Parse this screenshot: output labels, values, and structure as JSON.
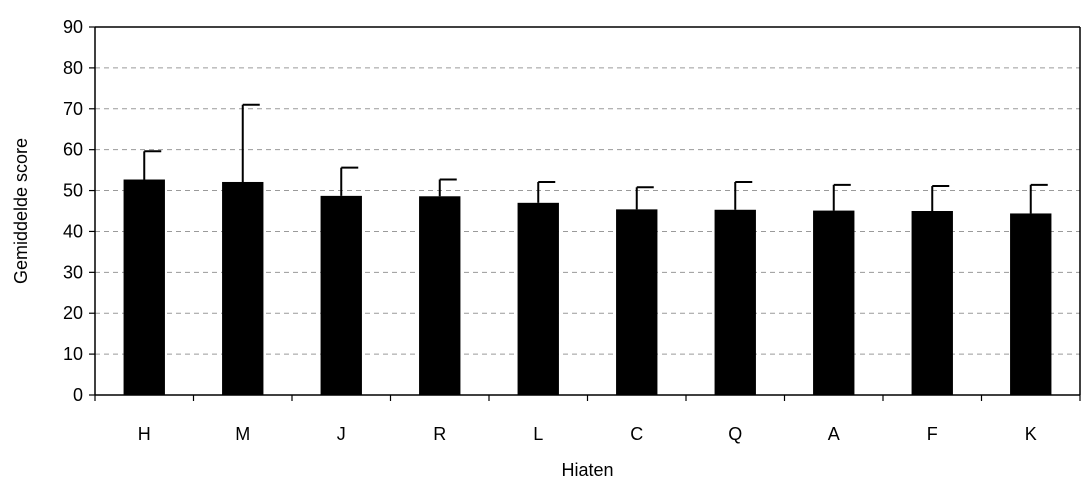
{
  "chart_data": {
    "type": "bar",
    "title": "",
    "xlabel": "Hiaten",
    "ylabel": "Gemiddelde score",
    "ylim": [
      0,
      90
    ],
    "yticks": [
      0,
      10,
      20,
      30,
      40,
      50,
      60,
      70,
      80,
      90
    ],
    "grid": true,
    "legend": "none",
    "bar_color": "#000000",
    "categories": [
      "H",
      "M",
      "J",
      "R",
      "L",
      "C",
      "Q",
      "A",
      "F",
      "K"
    ],
    "values": [
      52.7,
      52.1,
      48.7,
      48.6,
      47.0,
      45.4,
      45.3,
      45.1,
      45.0,
      44.4
    ],
    "error_upper": [
      59.6,
      71.0,
      55.6,
      52.7,
      52.1,
      50.8,
      52.1,
      51.4,
      51.1,
      51.4
    ]
  }
}
